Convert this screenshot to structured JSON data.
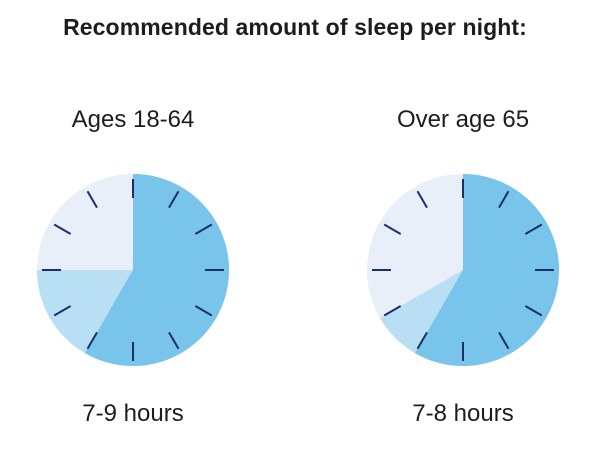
{
  "title": "Recommended amount of sleep per night:",
  "colors": {
    "background_quadrant": "#e8eff9",
    "range_slice": "#b9dff5",
    "minimum_slice": "#78c4ea",
    "tick": "#1b2f6b"
  },
  "panels": [
    {
      "heading": "Ages 18-64",
      "caption": "7-9 hours",
      "min_hours": 7,
      "max_hours": 9
    },
    {
      "heading": "Over age 65",
      "caption": "7-8 hours",
      "min_hours": 7,
      "max_hours": 8
    }
  ]
}
